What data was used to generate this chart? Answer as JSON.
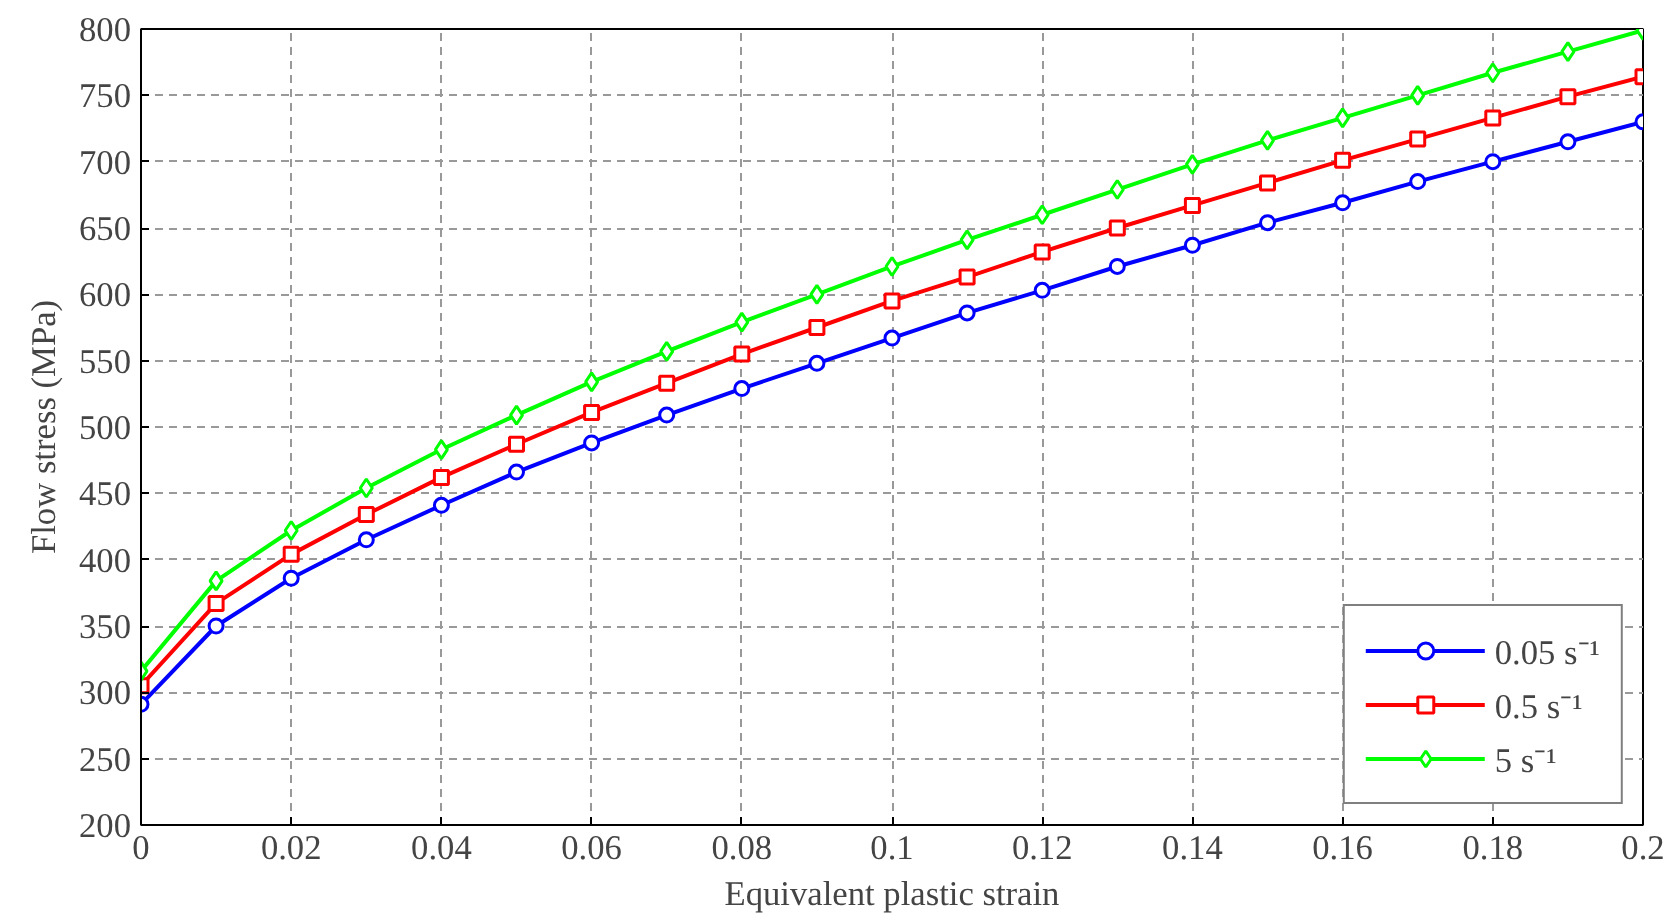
{
  "chart_data": {
    "type": "line",
    "xlabel": "Equivalent plastic strain",
    "ylabel": "Flow stress (MPa)",
    "x": [
      0,
      0.01,
      0.02,
      0.03,
      0.04,
      0.05,
      0.06,
      0.07,
      0.08,
      0.09,
      0.1,
      0.11,
      0.12,
      0.13,
      0.14,
      0.15,
      0.16,
      0.17,
      0.18,
      0.19,
      0.2
    ],
    "series": [
      {
        "name": "0.05 s⁻¹",
        "color": "#0000ff",
        "marker": "circle",
        "values": [
          291,
          350,
          386,
          415,
          441,
          466,
          488,
          509,
          529,
          548,
          567,
          586,
          603,
          621,
          637,
          654,
          669,
          685,
          700,
          715,
          730
        ]
      },
      {
        "name": "0.5 s⁻¹",
        "color": "#ff0000",
        "marker": "square",
        "values": [
          305,
          367,
          404,
          434,
          462,
          487,
          511,
          533,
          555,
          575,
          595,
          613,
          632,
          650,
          667,
          684,
          701,
          717,
          733,
          749,
          764
        ]
      },
      {
        "name": "5 s⁻¹",
        "color": "#00ff00",
        "marker": "diamond",
        "values": [
          316,
          384,
          422,
          454,
          483,
          509,
          534,
          557,
          579,
          600,
          621,
          641,
          660,
          679,
          698,
          716,
          733,
          750,
          767,
          783,
          799
        ]
      }
    ],
    "xlim": [
      0,
      0.2
    ],
    "ylim": [
      200,
      800
    ],
    "xticks": [
      0,
      0.02,
      0.04,
      0.06,
      0.08,
      0.1,
      0.12,
      0.14,
      0.16,
      0.18,
      0.2
    ],
    "yticks": [
      200,
      250,
      300,
      350,
      400,
      450,
      500,
      550,
      600,
      650,
      700,
      750,
      800
    ],
    "grid": true,
    "legend": "bottom right",
    "line_style": "solid"
  }
}
